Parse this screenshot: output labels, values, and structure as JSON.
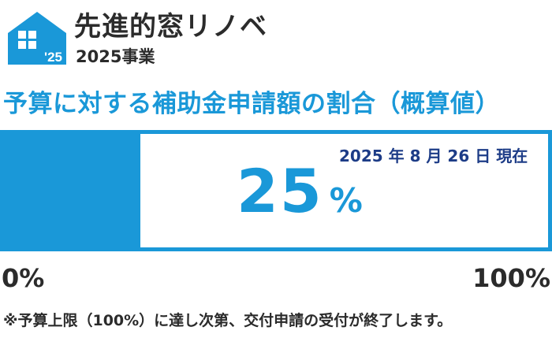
{
  "brand": {
    "logo_year": "'25",
    "name": "先進的窓リノベ",
    "sub": "2025事業"
  },
  "headline": "予算に対する補助金申請額の割合（概算値）",
  "progress": {
    "as_of": "2025 年 8 月 26 日 現在",
    "value": "25",
    "unit": "%",
    "fraction": 0.25,
    "min_label": "0%",
    "max_label": "100%"
  },
  "note": "※予算上限（100%）に達し次第、交付申請の受付が終了します。",
  "colors": {
    "accent": "#1a98d8",
    "date": "#1d3c87",
    "text": "#2b2b2b"
  }
}
